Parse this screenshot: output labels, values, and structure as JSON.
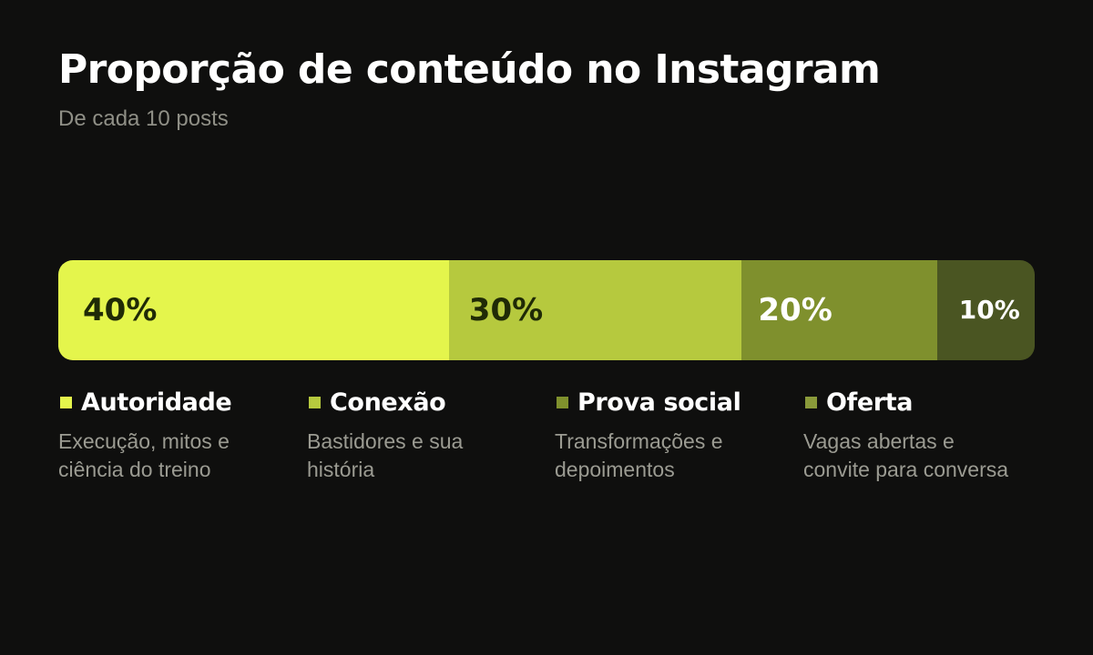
{
  "chart_data": {
    "type": "bar",
    "orientation": "horizontal-stacked",
    "title": "Proporção de conteúdo no Instagram",
    "subtitle": "De cada 10 posts",
    "unit": "%",
    "total": 100,
    "series": [
      {
        "name": "Autoridade",
        "value": 40,
        "label": "40%",
        "description": "Execução, mitos e\nciência do treino",
        "color": "#e4f54c",
        "swatch_color": "#e4f54c",
        "label_color": "#1f2a06"
      },
      {
        "name": "Conexão",
        "value": 30,
        "label": "30%",
        "description": "Bastidores e sua\nhistória",
        "color": "#b6c93e",
        "swatch_color": "#b6c93e",
        "label_color": "#1f2a06"
      },
      {
        "name": "Prova social",
        "value": 20,
        "label": "20%",
        "description": "Transformações e\ndepoimentos",
        "color": "#7f902d",
        "swatch_color": "#7f902d",
        "label_color": "#ffffff"
      },
      {
        "name": "Oferta",
        "value": 10,
        "label": "10%",
        "description": "Vagas abertas e\nconvite para conversa",
        "color": "#4a5522",
        "swatch_color": "#8a9a3a",
        "label_color": "#ffffff"
      }
    ],
    "legend_position": "bottom",
    "grid": false,
    "background": "#0f0f0e"
  }
}
